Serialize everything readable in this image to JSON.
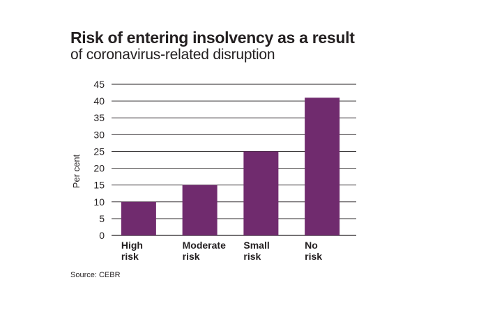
{
  "title": "Risk of entering insolvency as a result",
  "subtitle": "of coronavirus-related disruption",
  "source": "Source: CEBR",
  "chart_data": {
    "type": "bar",
    "categories": [
      [
        "High",
        "risk"
      ],
      [
        "Moderate",
        "risk"
      ],
      [
        "Small",
        "risk"
      ],
      [
        "No",
        "risk"
      ]
    ],
    "values": [
      10,
      15,
      25,
      41
    ],
    "ylabel": "Per cent",
    "ylim": [
      0,
      45
    ],
    "yticks": [
      0,
      5,
      10,
      15,
      20,
      25,
      30,
      35,
      40,
      45
    ],
    "grid": true,
    "bar_color": "#702b6e"
  }
}
